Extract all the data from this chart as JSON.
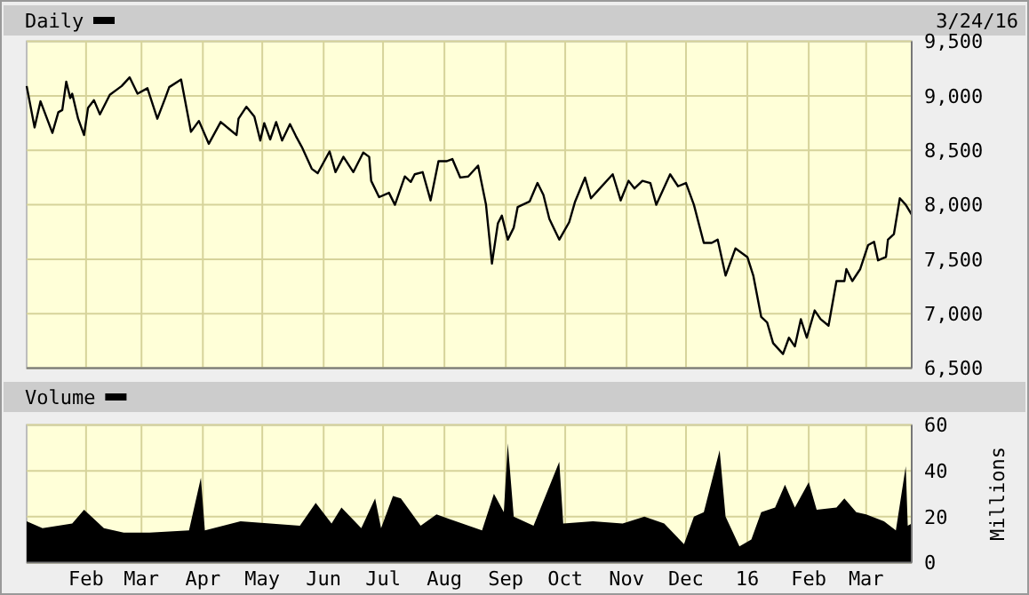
{
  "chart_data": [
    {
      "type": "line",
      "annotations": [
        "3/24/16"
      ],
      "legend": "top left",
      "grid": true,
      "tick_labels": "y",
      "xlim": [
        "2015-01-02",
        "2016-03-24"
      ],
      "xticks": [
        {
          "value": "2015-02-01",
          "label": null
        },
        {
          "value": "2015-03-01",
          "label": null
        },
        {
          "value": "2015-04-01",
          "label": null
        },
        {
          "value": "2015-05-01",
          "label": null
        },
        {
          "value": "2015-06-01",
          "label": null
        },
        {
          "value": "2015-07-01",
          "label": null
        },
        {
          "value": "2015-08-01",
          "label": null
        },
        {
          "value": "2015-09-01",
          "label": null
        },
        {
          "value": "2015-10-01",
          "label": null
        },
        {
          "value": "2015-11-01",
          "label": null
        },
        {
          "value": "2015-12-01",
          "label": null
        },
        {
          "value": "2016-01-01",
          "label": null
        },
        {
          "value": "2016-02-01",
          "label": null
        },
        {
          "value": "2016-03-01",
          "label": null
        }
      ],
      "ylim": [
        6500,
        9500
      ],
      "yticks": [
        {
          "value": 6500,
          "label": "6,500"
        },
        {
          "value": 7000,
          "label": "7,000"
        },
        {
          "value": 7500,
          "label": "7,500"
        },
        {
          "value": 8000,
          "label": "8,000"
        },
        {
          "value": 8500,
          "label": "8,500"
        },
        {
          "value": 9000,
          "label": "9,000"
        },
        {
          "value": 9500,
          "label": "9,500"
        }
      ],
      "x": [
        "2015-01-02",
        "2015-01-06",
        "2015-01-09",
        "2015-01-15",
        "2015-01-18",
        "2015-01-20",
        "2015-01-22",
        "2015-01-24",
        "2015-01-25",
        "2015-01-28",
        "2015-01-31",
        "2015-02-02",
        "2015-02-05",
        "2015-02-08",
        "2015-02-13",
        "2015-02-19",
        "2015-02-23",
        "2015-02-27",
        "2015-03-04",
        "2015-03-09",
        "2015-03-13",
        "2015-03-15",
        "2015-03-21",
        "2015-03-26",
        "2015-03-30",
        "2015-04-04",
        "2015-04-10",
        "2015-04-14",
        "2015-04-18",
        "2015-04-19",
        "2015-04-23",
        "2015-04-27",
        "2015-04-30",
        "2015-05-02",
        "2015-05-05",
        "2015-05-08",
        "2015-05-11",
        "2015-05-15",
        "2015-05-18",
        "2015-05-21",
        "2015-05-26",
        "2015-05-29",
        "2015-06-04",
        "2015-06-07",
        "2015-06-11",
        "2015-06-16",
        "2015-06-21",
        "2015-06-24",
        "2015-06-25",
        "2015-06-29",
        "2015-07-04",
        "2015-07-07",
        "2015-07-12",
        "2015-07-15",
        "2015-07-17",
        "2015-07-21",
        "2015-07-25",
        "2015-07-29",
        "2015-08-02",
        "2015-08-05",
        "2015-08-09",
        "2015-08-13",
        "2015-08-18",
        "2015-08-22",
        "2015-08-25",
        "2015-08-28",
        "2015-08-30",
        "2015-09-02",
        "2015-09-05",
        "2015-09-07",
        "2015-09-13",
        "2015-09-17",
        "2015-09-20",
        "2015-09-23",
        "2015-09-28",
        "2015-10-03",
        "2015-10-06",
        "2015-10-11",
        "2015-10-14",
        "2015-10-18",
        "2015-10-25",
        "2015-10-29",
        "2015-11-02",
        "2015-11-05",
        "2015-11-09",
        "2015-11-13",
        "2015-11-16",
        "2015-11-23",
        "2015-11-27",
        "2015-12-01",
        "2015-12-05",
        "2015-12-10",
        "2015-12-14",
        "2015-12-17",
        "2015-12-21",
        "2015-12-26",
        "2016-01-01",
        "2016-01-04",
        "2016-01-08",
        "2016-01-11",
        "2016-01-14",
        "2016-01-19",
        "2016-01-22",
        "2016-01-25",
        "2016-01-28",
        "2016-01-31",
        "2016-02-04",
        "2016-02-07",
        "2016-02-11",
        "2016-02-15",
        "2016-02-19",
        "2016-02-20",
        "2016-02-23",
        "2016-02-27",
        "2016-03-02",
        "2016-03-05",
        "2016-03-07",
        "2016-03-11",
        "2016-03-12",
        "2016-03-15",
        "2016-03-18",
        "2016-03-21",
        "2016-03-24"
      ],
      "series": [
        {
          "name": "Daily",
          "color": "#000000",
          "values": [
            9090,
            8710,
            8950,
            8660,
            8850,
            8870,
            9130,
            8980,
            9020,
            8790,
            8640,
            8890,
            8960,
            8830,
            9010,
            9090,
            9170,
            9020,
            9070,
            8790,
            8980,
            9080,
            9150,
            8670,
            8770,
            8560,
            8760,
            8700,
            8640,
            8790,
            8900,
            8810,
            8590,
            8750,
            8600,
            8760,
            8590,
            8740,
            8630,
            8530,
            8330,
            8290,
            8490,
            8300,
            8440,
            8300,
            8480,
            8440,
            8220,
            8070,
            8110,
            8000,
            8260,
            8210,
            8280,
            8300,
            8040,
            8400,
            8400,
            8420,
            8250,
            8260,
            8360,
            8000,
            7460,
            7830,
            7900,
            7680,
            7790,
            7980,
            8030,
            8200,
            8090,
            7870,
            7680,
            7840,
            8030,
            8250,
            8060,
            8140,
            8280,
            8040,
            8220,
            8150,
            8220,
            8200,
            8000,
            8280,
            8170,
            8200,
            8000,
            7650,
            7650,
            7680,
            7350,
            7600,
            7520,
            7350,
            6970,
            6920,
            6730,
            6630,
            6780,
            6700,
            6950,
            6780,
            7030,
            6950,
            6890,
            7300,
            7300,
            7410,
            7300,
            7410,
            7630,
            7660,
            7490,
            7520,
            7680,
            7730,
            8060,
            8000,
            7910
          ]
        }
      ]
    },
    {
      "type": "area",
      "ylabel": "Millions",
      "legend": "top left",
      "grid": true,
      "xlim": [
        "2015-01-02",
        "2016-03-24"
      ],
      "xticks": [
        {
          "value": "2015-02-01",
          "label": "Feb"
        },
        {
          "value": "2015-03-01",
          "label": "Mar"
        },
        {
          "value": "2015-04-01",
          "label": "Apr"
        },
        {
          "value": "2015-05-01",
          "label": "May"
        },
        {
          "value": "2015-06-01",
          "label": "Jun"
        },
        {
          "value": "2015-07-01",
          "label": "Jul"
        },
        {
          "value": "2015-08-01",
          "label": "Aug"
        },
        {
          "value": "2015-09-01",
          "label": "Sep"
        },
        {
          "value": "2015-10-01",
          "label": "Oct"
        },
        {
          "value": "2015-11-01",
          "label": "Nov"
        },
        {
          "value": "2015-12-01",
          "label": "Dec"
        },
        {
          "value": "2016-01-01",
          "label": "16"
        },
        {
          "value": "2016-02-01",
          "label": "Feb"
        },
        {
          "value": "2016-03-01",
          "label": "Mar"
        }
      ],
      "ylim": [
        0,
        60
      ],
      "yticks": [
        0,
        20,
        40,
        60
      ],
      "x": [
        "2015-01-02",
        "2015-01-10",
        "2015-01-25",
        "2015-01-31",
        "2015-02-10",
        "2015-02-20",
        "2015-03-05",
        "2015-03-25",
        "2015-03-31",
        "2015-04-02",
        "2015-04-20",
        "2015-05-05",
        "2015-05-20",
        "2015-05-28",
        "2015-06-05",
        "2015-06-10",
        "2015-06-20",
        "2015-06-27",
        "2015-06-30",
        "2015-07-06",
        "2015-07-10",
        "2015-07-20",
        "2015-07-28",
        "2015-08-10",
        "2015-08-20",
        "2015-08-26",
        "2015-08-31",
        "2015-09-02",
        "2015-09-05",
        "2015-09-15",
        "2015-09-28",
        "2015-09-30",
        "2015-10-15",
        "2015-10-30",
        "2015-11-10",
        "2015-11-20",
        "2015-11-30",
        "2015-12-05",
        "2015-12-10",
        "2015-12-18",
        "2015-12-21",
        "2015-12-28",
        "2016-01-03",
        "2016-01-08",
        "2016-01-15",
        "2016-01-20",
        "2016-01-25",
        "2016-02-01",
        "2016-02-05",
        "2016-02-15",
        "2016-02-19",
        "2016-02-25",
        "2016-03-01",
        "2016-03-10",
        "2016-03-16",
        "2016-03-21",
        "2016-03-22",
        "2016-03-24"
      ],
      "series": [
        {
          "name": "Volume",
          "color": "#000000",
          "values": [
            18,
            15,
            17,
            23,
            15,
            13,
            13,
            14,
            37,
            14,
            18,
            17,
            16,
            26,
            17,
            24,
            15,
            28,
            15,
            29,
            28,
            16,
            21,
            17,
            14,
            30,
            22,
            52,
            20,
            16,
            44,
            17,
            18,
            17,
            20,
            17,
            8,
            20,
            22,
            49,
            20,
            7,
            10,
            22,
            24,
            34,
            24,
            35,
            23,
            24,
            28,
            22,
            21,
            18,
            14,
            42,
            16,
            17
          ]
        }
      ]
    }
  ]
}
